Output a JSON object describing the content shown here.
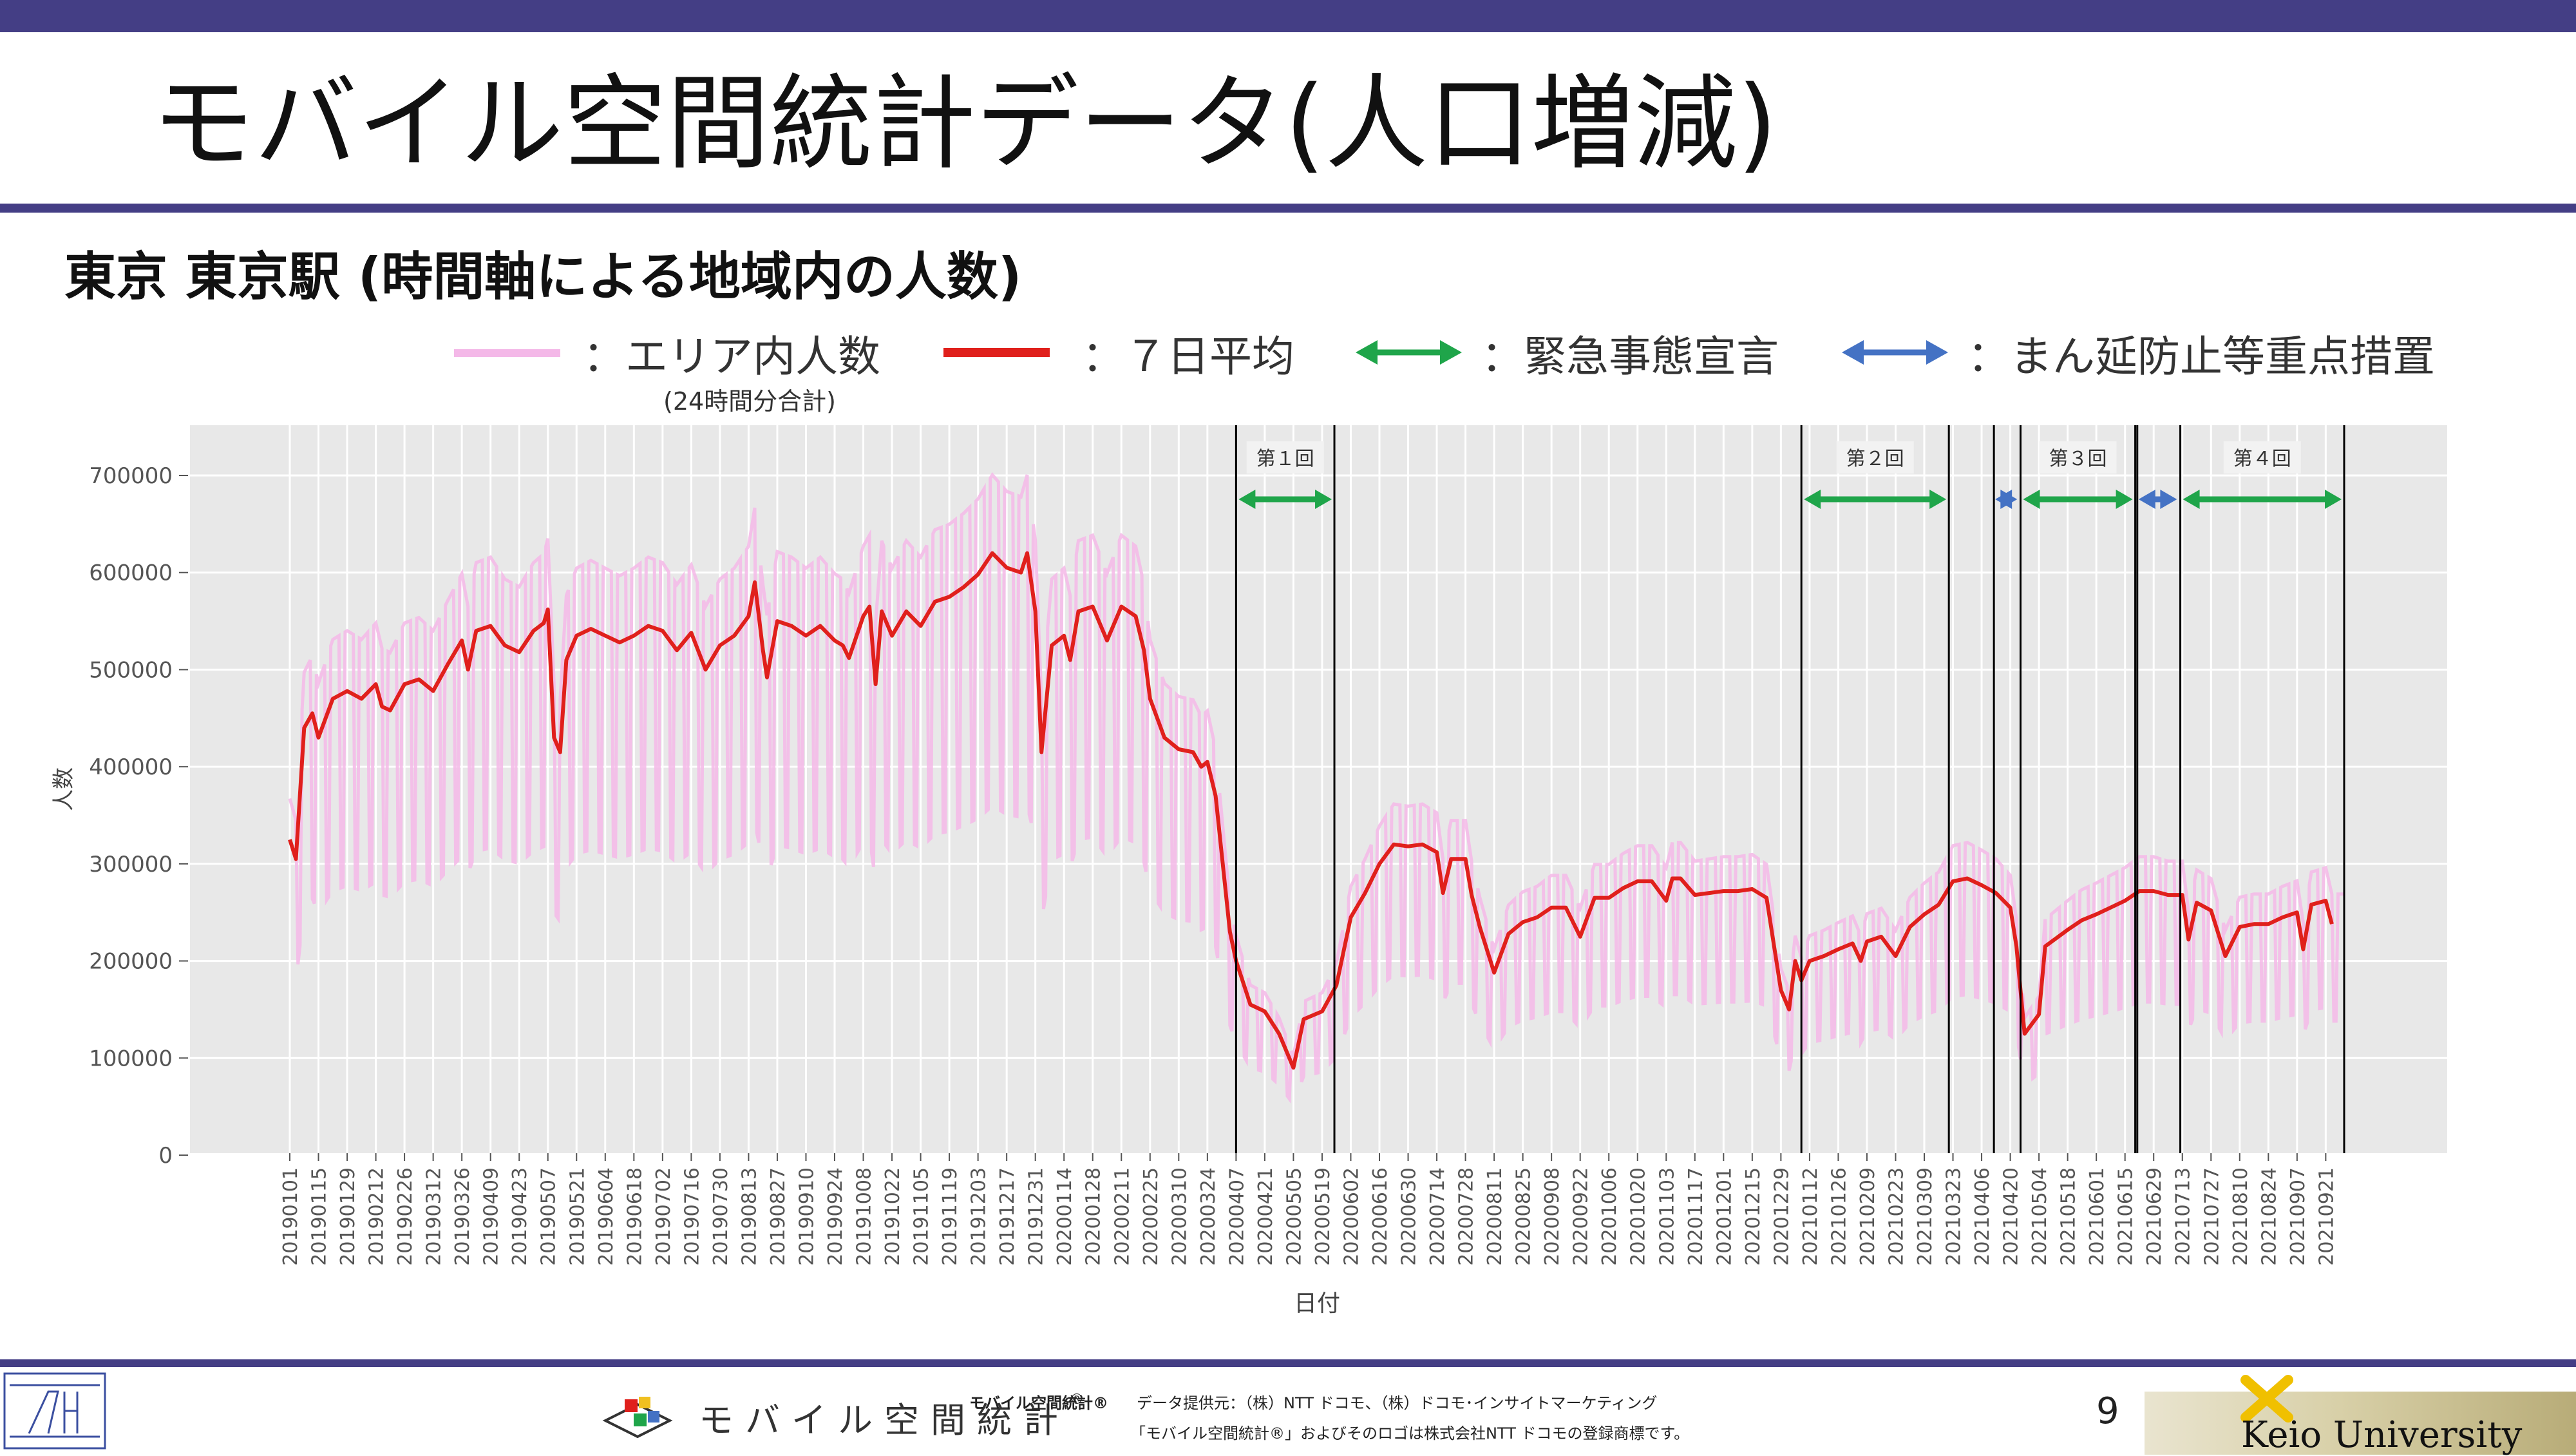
{
  "slide": {
    "title": "モバイル空間統計データ(人口増減)",
    "subtitle": "東京 東京駅 (時間軸による地域内の人数)",
    "page_number": "9"
  },
  "legend": {
    "area_label": "：エリア内人数",
    "area_sub": "(24時間分合計)",
    "avg_label": "：７日平均",
    "emergency_label": "：緊急事態宣言",
    "priority_label": "：まん延防止等重点措置",
    "colors": {
      "area": "#f4b8e8",
      "avg": "#e0201c",
      "emergency": "#1fa54a",
      "priority": "#4472c4"
    }
  },
  "footer": {
    "brand_text": "モバイル空間統計",
    "brand_mark": "®",
    "small_brand": "モバイル空間統計®",
    "provider": "データ提供元：（株）NTT ドコモ、（株）ドコモ･インサイトマーケティング",
    "trademark": "「モバイル空間統計®」およびそのロゴは株式会社NTT ドコモの登録商標です。",
    "university": "Keio University"
  },
  "chart_data": {
    "type": "line",
    "xlabel": "日付",
    "ylabel": "人数",
    "ylim": [
      0,
      700000
    ],
    "y_ticks": [
      0,
      100000,
      200000,
      300000,
      400000,
      500000,
      600000,
      700000
    ],
    "y_tick_labels": [
      "0",
      "100000",
      "200000",
      "300000",
      "400000",
      "500000",
      "600000",
      "700000"
    ],
    "x_tick_labels": [
      "20190101",
      "20190115",
      "20190129",
      "20190212",
      "20190226",
      "20190312",
      "20190326",
      "20190409",
      "20190423",
      "20190507",
      "20190521",
      "20190604",
      "20190618",
      "20190702",
      "20190716",
      "20190730",
      "20190813",
      "20190827",
      "20190910",
      "20190924",
      "20191008",
      "20191022",
      "20191105",
      "20191119",
      "20191203",
      "20191217",
      "20191231",
      "20200114",
      "20200128",
      "20200211",
      "20200225",
      "20200310",
      "20200324",
      "20200407",
      "20200421",
      "20200505",
      "20200519",
      "20200602",
      "20200616",
      "20200630",
      "20200714",
      "20200728",
      "20200811",
      "20200825",
      "20200908",
      "20200922",
      "20201006",
      "20201020",
      "20201103",
      "20201117",
      "20201201",
      "20201215",
      "20201229",
      "20210112",
      "20210126",
      "20210209",
      "20210223",
      "20210309",
      "20210323",
      "20210406",
      "20210420",
      "20210504",
      "20210518",
      "20210601",
      "20210615",
      "20210629",
      "20210713",
      "20210727",
      "20210810",
      "20210824",
      "20210907",
      "20210921"
    ],
    "grid": true,
    "series": [
      {
        "name": "：７日平均",
        "color": "#e0201c",
        "points": [
          [
            "20190101",
            325000
          ],
          [
            "20190104",
            305000
          ],
          [
            "20190108",
            440000
          ],
          [
            "20190112",
            455000
          ],
          [
            "20190115",
            430000
          ],
          [
            "20190122",
            470000
          ],
          [
            "20190129",
            478000
          ],
          [
            "20190205",
            470000
          ],
          [
            "20190212",
            485000
          ],
          [
            "20190215",
            462000
          ],
          [
            "20190219",
            458000
          ],
          [
            "20190226",
            485000
          ],
          [
            "20190305",
            490000
          ],
          [
            "20190312",
            478000
          ],
          [
            "20190319",
            505000
          ],
          [
            "20190326",
            530000
          ],
          [
            "20190329",
            500000
          ],
          [
            "20190402",
            540000
          ],
          [
            "20190409",
            545000
          ],
          [
            "20190416",
            525000
          ],
          [
            "20190423",
            518000
          ],
          [
            "20190430",
            540000
          ],
          [
            "20190505",
            548000
          ],
          [
            "20190507",
            562000
          ],
          [
            "20190510",
            430000
          ],
          [
            "20190513",
            415000
          ],
          [
            "20190516",
            510000
          ],
          [
            "20190521",
            535000
          ],
          [
            "20190528",
            542000
          ],
          [
            "20190604",
            535000
          ],
          [
            "20190611",
            528000
          ],
          [
            "20190618",
            535000
          ],
          [
            "20190625",
            545000
          ],
          [
            "20190702",
            540000
          ],
          [
            "20190709",
            520000
          ],
          [
            "20190716",
            538000
          ],
          [
            "20190723",
            500000
          ],
          [
            "20190730",
            525000
          ],
          [
            "20190806",
            535000
          ],
          [
            "20190813",
            555000
          ],
          [
            "20190816",
            590000
          ],
          [
            "20190820",
            520000
          ],
          [
            "20190822",
            492000
          ],
          [
            "20190827",
            550000
          ],
          [
            "20190903",
            545000
          ],
          [
            "20190910",
            535000
          ],
          [
            "20190917",
            545000
          ],
          [
            "20190924",
            530000
          ],
          [
            "20190928",
            525000
          ],
          [
            "20191001",
            512000
          ],
          [
            "20191008",
            555000
          ],
          [
            "20191011",
            565000
          ],
          [
            "20191014",
            485000
          ],
          [
            "20191017",
            560000
          ],
          [
            "20191022",
            535000
          ],
          [
            "20191029",
            560000
          ],
          [
            "20191105",
            545000
          ],
          [
            "20191112",
            570000
          ],
          [
            "20191119",
            575000
          ],
          [
            "20191126",
            585000
          ],
          [
            "20191203",
            598000
          ],
          [
            "20191210",
            620000
          ],
          [
            "20191217",
            605000
          ],
          [
            "20191224",
            600000
          ],
          [
            "20191227",
            620000
          ],
          [
            "20191231",
            560000
          ],
          [
            "20200103",
            415000
          ],
          [
            "20200108",
            525000
          ],
          [
            "20200114",
            535000
          ],
          [
            "20200117",
            510000
          ],
          [
            "20200121",
            560000
          ],
          [
            "20200128",
            565000
          ],
          [
            "20200204",
            530000
          ],
          [
            "20200211",
            565000
          ],
          [
            "20200218",
            555000
          ],
          [
            "20200222",
            520000
          ],
          [
            "20200225",
            470000
          ],
          [
            "20200303",
            430000
          ],
          [
            "20200310",
            418000
          ],
          [
            "20200317",
            415000
          ],
          [
            "20200321",
            400000
          ],
          [
            "20200324",
            405000
          ],
          [
            "20200328",
            370000
          ],
          [
            "20200331",
            310000
          ],
          [
            "20200404",
            230000
          ],
          [
            "20200407",
            200000
          ],
          [
            "20200414",
            155000
          ],
          [
            "20200421",
            148000
          ],
          [
            "20200428",
            125000
          ],
          [
            "20200505",
            90000
          ],
          [
            "20200510",
            140000
          ],
          [
            "20200519",
            148000
          ],
          [
            "20200526",
            175000
          ],
          [
            "20200602",
            245000
          ],
          [
            "20200609",
            270000
          ],
          [
            "20200616",
            300000
          ],
          [
            "20200623",
            320000
          ],
          [
            "20200630",
            318000
          ],
          [
            "20200707",
            320000
          ],
          [
            "20200714",
            312000
          ],
          [
            "20200717",
            270000
          ],
          [
            "20200721",
            305000
          ],
          [
            "20200728",
            305000
          ],
          [
            "20200731",
            268000
          ],
          [
            "20200804",
            235000
          ],
          [
            "20200811",
            188000
          ],
          [
            "20200818",
            228000
          ],
          [
            "20200825",
            240000
          ],
          [
            "20200901",
            245000
          ],
          [
            "20200908",
            255000
          ],
          [
            "20200915",
            255000
          ],
          [
            "20200922",
            225000
          ],
          [
            "20200929",
            265000
          ],
          [
            "20201006",
            265000
          ],
          [
            "20201013",
            275000
          ],
          [
            "20201020",
            282000
          ],
          [
            "20201027",
            282000
          ],
          [
            "20201103",
            262000
          ],
          [
            "20201106",
            285000
          ],
          [
            "20201110",
            285000
          ],
          [
            "20201117",
            268000
          ],
          [
            "20201124",
            270000
          ],
          [
            "20201201",
            272000
          ],
          [
            "20201208",
            272000
          ],
          [
            "20201215",
            274000
          ],
          [
            "20201222",
            265000
          ],
          [
            "20201229",
            170000
          ],
          [
            "20210102",
            150000
          ],
          [
            "20210105",
            200000
          ],
          [
            "20210108",
            180000
          ],
          [
            "20210112",
            200000
          ],
          [
            "20210119",
            205000
          ],
          [
            "20210126",
            212000
          ],
          [
            "20210202",
            218000
          ],
          [
            "20210206",
            200000
          ],
          [
            "20210209",
            220000
          ],
          [
            "20210216",
            225000
          ],
          [
            "20210223",
            205000
          ],
          [
            "20210302",
            235000
          ],
          [
            "20210309",
            248000
          ],
          [
            "20210316",
            258000
          ],
          [
            "20210323",
            282000
          ],
          [
            "20210330",
            285000
          ],
          [
            "20210406",
            278000
          ],
          [
            "20210413",
            270000
          ],
          [
            "20210420",
            255000
          ],
          [
            "20210423",
            215000
          ],
          [
            "20210427",
            125000
          ],
          [
            "20210504",
            145000
          ],
          [
            "20210507",
            215000
          ],
          [
            "20210518",
            232000
          ],
          [
            "20210525",
            242000
          ],
          [
            "20210601",
            248000
          ],
          [
            "20210608",
            255000
          ],
          [
            "20210615",
            262000
          ],
          [
            "20210622",
            272000
          ],
          [
            "20210629",
            272000
          ],
          [
            "20210706",
            268000
          ],
          [
            "20210713",
            268000
          ],
          [
            "20210716",
            222000
          ],
          [
            "20210720",
            260000
          ],
          [
            "20210727",
            252000
          ],
          [
            "20210803",
            205000
          ],
          [
            "20210810",
            235000
          ],
          [
            "20210817",
            238000
          ],
          [
            "20210824",
            238000
          ],
          [
            "20210831",
            245000
          ],
          [
            "20210907",
            250000
          ],
          [
            "20210910",
            212000
          ],
          [
            "20210914",
            258000
          ],
          [
            "20210921",
            262000
          ],
          [
            "20210924",
            238000
          ]
        ]
      }
    ],
    "emergency_periods": [
      {
        "label": "第１回",
        "start": "20200407",
        "end": "20200525"
      },
      {
        "label": "第２回",
        "start": "20210108",
        "end": "20210321"
      },
      {
        "label": "第３回",
        "start": "20210425",
        "end": "20210620"
      },
      {
        "label": "第４回",
        "start": "20210712",
        "end": "20210930"
      }
    ],
    "priority_periods": [
      {
        "start": "20210412",
        "end": "20210424"
      },
      {
        "start": "20210621",
        "end": "20210711"
      }
    ],
    "annotations": [
      "第１回",
      "第２回",
      "第３回",
      "第４回"
    ]
  }
}
